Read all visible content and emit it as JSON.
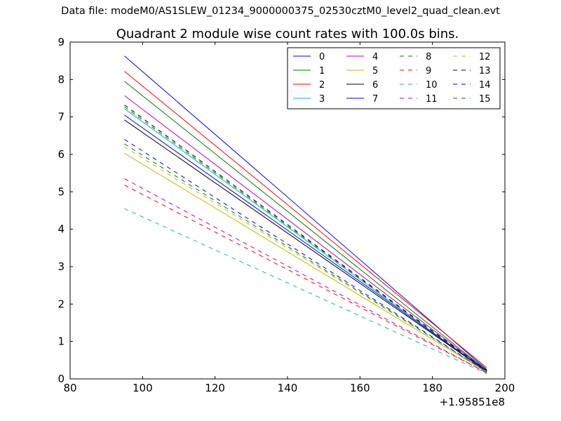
{
  "suptitle": "Data file: modeM0/AS1SLEW_01234_9000000375_02530cztM0_level2_quad_clean.evt",
  "chart_data": {
    "type": "line",
    "title": "Quadrant 2 module wise count rates with 100.0s bins.",
    "xlabel": "",
    "ylabel": "",
    "x_offset_label": "+1.95851e8",
    "xlim": [
      80,
      200
    ],
    "ylim": [
      0,
      9
    ],
    "xticks": [
      80,
      100,
      120,
      140,
      160,
      180,
      200
    ],
    "yticks": [
      0,
      1,
      2,
      3,
      4,
      5,
      6,
      7,
      8,
      9
    ],
    "legend_location": "upper-right",
    "legend_columns": 4,
    "series": [
      {
        "name": "0",
        "color": "#0000ff",
        "style": "solid",
        "x": [
          95,
          195
        ],
        "values": [
          8.63,
          0.25
        ]
      },
      {
        "name": "1",
        "color": "#008000",
        "style": "solid",
        "x": [
          95,
          195
        ],
        "values": [
          7.95,
          0.23
        ]
      },
      {
        "name": "2",
        "color": "#ff0000",
        "style": "solid",
        "x": [
          95,
          195
        ],
        "values": [
          8.22,
          0.3
        ]
      },
      {
        "name": "3",
        "color": "#00bfbf",
        "style": "solid",
        "x": [
          95,
          195
        ],
        "values": [
          7.22,
          0.2
        ]
      },
      {
        "name": "4",
        "color": "#bf00bf",
        "style": "solid",
        "x": [
          95,
          195
        ],
        "values": [
          7.57,
          0.22
        ]
      },
      {
        "name": "5",
        "color": "#bfbf00",
        "style": "solid",
        "x": [
          95,
          195
        ],
        "values": [
          6.03,
          0.18
        ]
      },
      {
        "name": "6",
        "color": "#000000",
        "style": "solid",
        "x": [
          95,
          195
        ],
        "values": [
          6.92,
          0.2
        ]
      },
      {
        "name": "7",
        "color": "#0000ff",
        "style": "solid",
        "x": [
          95,
          195
        ],
        "values": [
          7.05,
          0.21
        ]
      },
      {
        "name": "8",
        "color": "#008000",
        "style": "dashed",
        "x": [
          95,
          195
        ],
        "values": [
          7.27,
          0.21
        ]
      },
      {
        "name": "9",
        "color": "#ff0000",
        "style": "dashed",
        "x": [
          95,
          195
        ],
        "values": [
          5.18,
          0.16
        ]
      },
      {
        "name": "10",
        "color": "#00bfbf",
        "style": "dashed",
        "x": [
          95,
          195
        ],
        "values": [
          4.55,
          0.14
        ]
      },
      {
        "name": "11",
        "color": "#bf00bf",
        "style": "dashed",
        "x": [
          95,
          195
        ],
        "values": [
          5.35,
          0.16
        ]
      },
      {
        "name": "12",
        "color": "#bfbf00",
        "style": "dashed",
        "x": [
          95,
          195
        ],
        "values": [
          6.2,
          0.19
        ]
      },
      {
        "name": "13",
        "color": "#000000",
        "style": "dashed",
        "x": [
          95,
          195
        ],
        "values": [
          7.32,
          0.22
        ]
      },
      {
        "name": "14",
        "color": "#0000ff",
        "style": "dashed",
        "x": [
          95,
          195
        ],
        "values": [
          6.4,
          0.19
        ]
      },
      {
        "name": "15",
        "color": "#008000",
        "style": "dashed",
        "x": [
          95,
          195
        ],
        "values": [
          6.28,
          0.19
        ]
      }
    ]
  }
}
